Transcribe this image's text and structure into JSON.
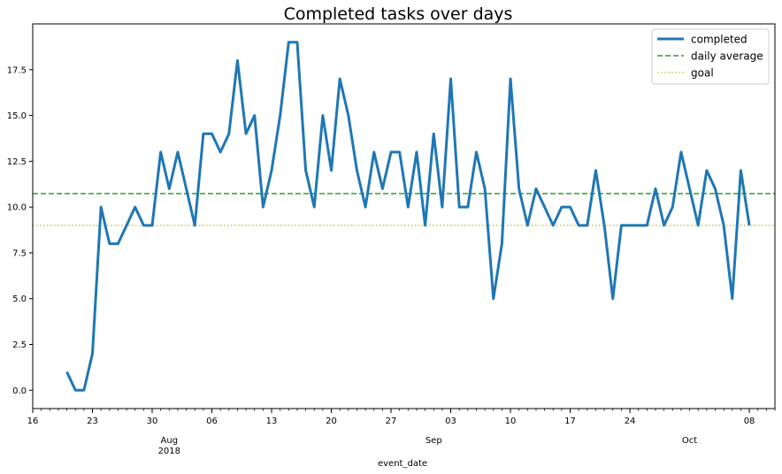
{
  "chart_data": {
    "type": "line",
    "title": "Completed tasks over days",
    "xlabel": "event_date",
    "ylabel": "",
    "x_start": "2018-07-20",
    "xlim": [
      "2018-07-16",
      "2018-10-11"
    ],
    "ylim": [
      -1.0,
      20.0
    ],
    "y_ticks": [
      0.0,
      2.5,
      5.0,
      7.5,
      10.0,
      12.5,
      15.0,
      17.5
    ],
    "y_tick_labels": [
      "0.0",
      "2.5",
      "5.0",
      "7.5",
      "10.0",
      "12.5",
      "15.0",
      "17.5"
    ],
    "x_major_ticks": [
      {
        "date": "2018-07-16",
        "label": "16"
      },
      {
        "date": "2018-07-23",
        "label": "23"
      },
      {
        "date": "2018-07-30",
        "label": "30"
      },
      {
        "date": "2018-08-06",
        "label": "06"
      },
      {
        "date": "2018-08-13",
        "label": "13"
      },
      {
        "date": "2018-08-20",
        "label": "20"
      },
      {
        "date": "2018-08-27",
        "label": "27"
      },
      {
        "date": "2018-09-03",
        "label": "03"
      },
      {
        "date": "2018-09-10",
        "label": "10"
      },
      {
        "date": "2018-09-17",
        "label": "17"
      },
      {
        "date": "2018-09-24",
        "label": "24"
      },
      {
        "date": "2018-10-08",
        "label": "08"
      }
    ],
    "x_month_labels": [
      {
        "date": "2018-08-01",
        "label": "Aug",
        "sub": "2018"
      },
      {
        "date": "2018-09-01",
        "label": "Sep",
        "sub": ""
      },
      {
        "date": "2018-10-01",
        "label": "Oct",
        "sub": ""
      }
    ],
    "grid": false,
    "legend_position": "top-right",
    "series": [
      {
        "name": "completed",
        "color": "#1f77b4",
        "style": "solid",
        "values": [
          1,
          0,
          0,
          2,
          10,
          8,
          8,
          9,
          10,
          9,
          9,
          13,
          11,
          13,
          11,
          9,
          14,
          14,
          13,
          14,
          18,
          14,
          15,
          10,
          12,
          15,
          19,
          19,
          12,
          10,
          15,
          12,
          17,
          15,
          12,
          10,
          13,
          11,
          13,
          13,
          10,
          13,
          9,
          14,
          10,
          17,
          10,
          10,
          13,
          11,
          5,
          8,
          17,
          11,
          9,
          11,
          10,
          9,
          10,
          10,
          9,
          9,
          12,
          9,
          5,
          9,
          9,
          9,
          9,
          11,
          9,
          10,
          13,
          11,
          9,
          12,
          11,
          9,
          5,
          12,
          9
        ]
      }
    ],
    "reference_lines": [
      {
        "name": "daily average",
        "value": 10.74,
        "color": "#2ca02c",
        "style": "dashed"
      },
      {
        "name": "goal",
        "value": 9.0,
        "color": "#bcbd22",
        "style": "dotted"
      }
    ]
  }
}
